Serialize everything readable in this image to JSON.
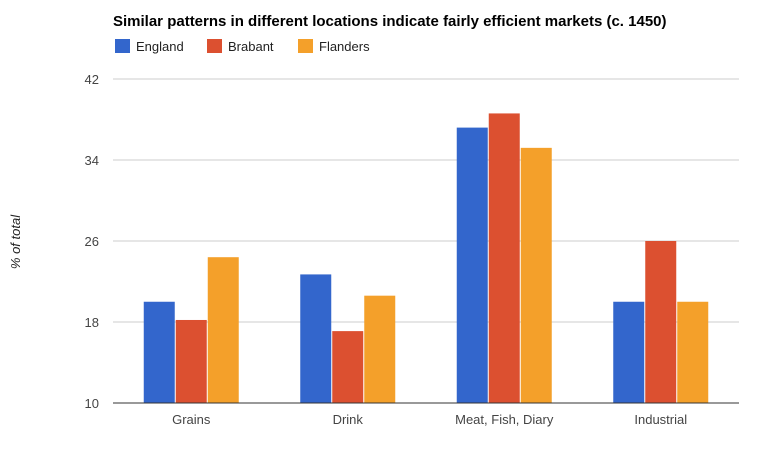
{
  "chart_data": {
    "type": "bar",
    "title": "Similar patterns in different locations indicate fairly efficient markets (c. 1450)",
    "xlabel": "",
    "ylabel": "% of total",
    "categories": [
      "Grains",
      "Drink",
      "Meat, Fish, Diary",
      "Industrial"
    ],
    "series": [
      {
        "name": "England",
        "color": "#3366cc",
        "values": [
          20,
          22.7,
          37.2,
          20
        ]
      },
      {
        "name": "Brabant",
        "color": "#dc5030",
        "values": [
          18.2,
          17.1,
          38.6,
          26
        ]
      },
      {
        "name": "Flanders",
        "color": "#f4a02a",
        "values": [
          24.4,
          20.6,
          35.2,
          20
        ]
      }
    ],
    "ylim": [
      10,
      42
    ],
    "yticks": [
      10,
      18,
      26,
      34,
      42
    ],
    "grid": true,
    "legend_position": "top-left"
  }
}
